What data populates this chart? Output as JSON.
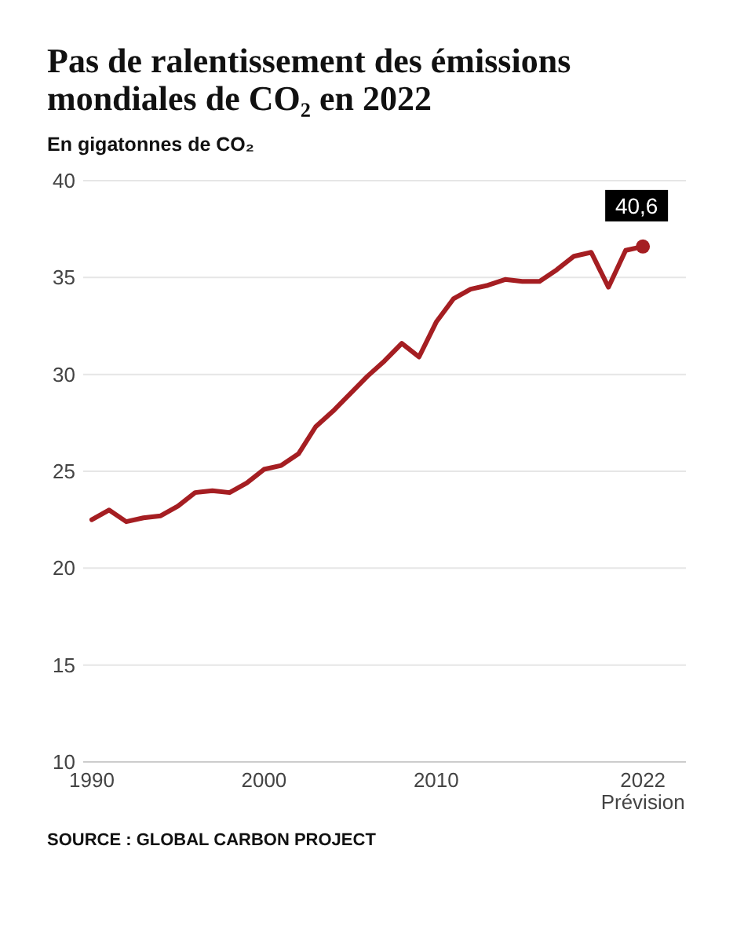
{
  "chart_data": {
    "type": "line",
    "title": "Pas de ralentissement des émissions mondiales de CO₂ en 2022",
    "ylabel": "En gigatonnes de CO₂",
    "x": [
      1990,
      1991,
      1992,
      1993,
      1994,
      1995,
      1996,
      1997,
      1998,
      1999,
      2000,
      2001,
      2002,
      2003,
      2004,
      2005,
      2006,
      2007,
      2008,
      2009,
      2010,
      2011,
      2012,
      2013,
      2014,
      2015,
      2016,
      2017,
      2018,
      2019,
      2020,
      2021,
      2022
    ],
    "series": [
      {
        "color": "#a51e22",
        "values": [
          22.5,
          23.0,
          22.4,
          22.6,
          22.7,
          23.2,
          23.9,
          24.0,
          23.9,
          24.4,
          25.1,
          25.3,
          25.9,
          27.3,
          28.1,
          29.0,
          29.9,
          30.7,
          31.6,
          30.9,
          32.7,
          33.9,
          34.4,
          34.6,
          34.9,
          34.8,
          34.8,
          35.4,
          36.1,
          36.3,
          34.5,
          36.4,
          36.6
        ]
      },
      {
        "type": "scatter",
        "color": "#a51e22",
        "marker": "circle",
        "x": [
          2022
        ],
        "values": [
          36.6
        ]
      }
    ],
    "xlim": [
      1989.5,
      2024.5
    ],
    "xticks": [
      1990,
      2000,
      2010,
      {
        "value": 2022,
        "label": "2022\nPrévision"
      }
    ],
    "ylim": [
      10,
      40
    ],
    "yticks": [
      10,
      15,
      20,
      25,
      30,
      35,
      40
    ],
    "grid": "y",
    "line_style": "solid",
    "annotations": [
      {
        "text": "40,6",
        "x": 2022,
        "y": 36.6
      },
      "SOURCE : GLOBAL CARBON PROJECT"
    ]
  }
}
